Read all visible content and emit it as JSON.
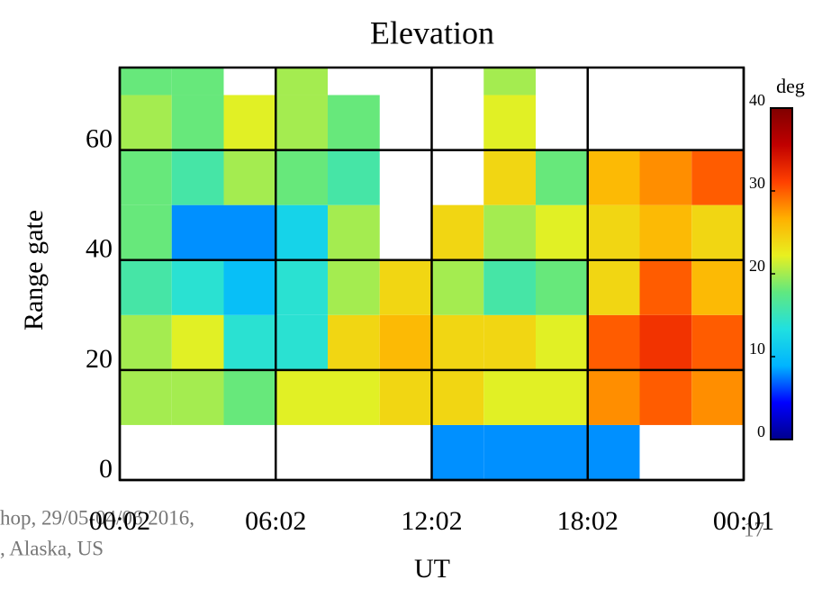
{
  "chart_data": {
    "type": "heatmap",
    "title": "Elevation",
    "x_label": "UT",
    "y_label": "Range gate",
    "x_bins": [
      0,
      2,
      4,
      6,
      8,
      10,
      12,
      14,
      16,
      18,
      20,
      22,
      24
    ],
    "y_bins": [
      0,
      10,
      20,
      30,
      40,
      50,
      60,
      70,
      75
    ],
    "z": [
      [
        null,
        null,
        null,
        null,
        null,
        null,
        8,
        8,
        8,
        8,
        null,
        null
      ],
      [
        20,
        20,
        18,
        22,
        22,
        24,
        24,
        22,
        22,
        28,
        30,
        28
      ],
      [
        20,
        22,
        14,
        14,
        24,
        26,
        24,
        24,
        22,
        30,
        32,
        30
      ],
      [
        16,
        14,
        10,
        14,
        20,
        24,
        20,
        16,
        18,
        24,
        30,
        26
      ],
      [
        18,
        8,
        8,
        12,
        20,
        null,
        24,
        20,
        22,
        24,
        26,
        24
      ],
      [
        18,
        16,
        20,
        18,
        16,
        null,
        null,
        24,
        18,
        26,
        28,
        30
      ],
      [
        20,
        18,
        22,
        20,
        18,
        null,
        null,
        22,
        null,
        null,
        null,
        null
      ],
      [
        18,
        18,
        null,
        20,
        null,
        null,
        null,
        20,
        null,
        null,
        null,
        null
      ]
    ],
    "xlim": [
      0,
      24
    ],
    "ylim": [
      0,
      75
    ],
    "xticks": [
      {
        "value": 0,
        "label": "00:02"
      },
      {
        "value": 6,
        "label": "06:02"
      },
      {
        "value": 12,
        "label": "12:02"
      },
      {
        "value": 18,
        "label": "18:02"
      },
      {
        "value": 24,
        "label": "00:01"
      }
    ],
    "yticks": [
      0,
      20,
      40,
      60
    ],
    "grid": true,
    "colorbar_label": "deg",
    "zlim": [
      0,
      40
    ],
    "zticks": [
      0,
      10,
      20,
      30,
      40
    ],
    "colorscale": [
      "#00008c",
      "#0000ff",
      "#00b4ff",
      "#20e0e0",
      "#60e880",
      "#e8f020",
      "#ffb000",
      "#ff4000",
      "#c00000",
      "#800000"
    ]
  },
  "footer": {
    "line1": "hop, 29/05-04/06 2016,",
    "line2": ", Alaska, US",
    "page": "17"
  }
}
